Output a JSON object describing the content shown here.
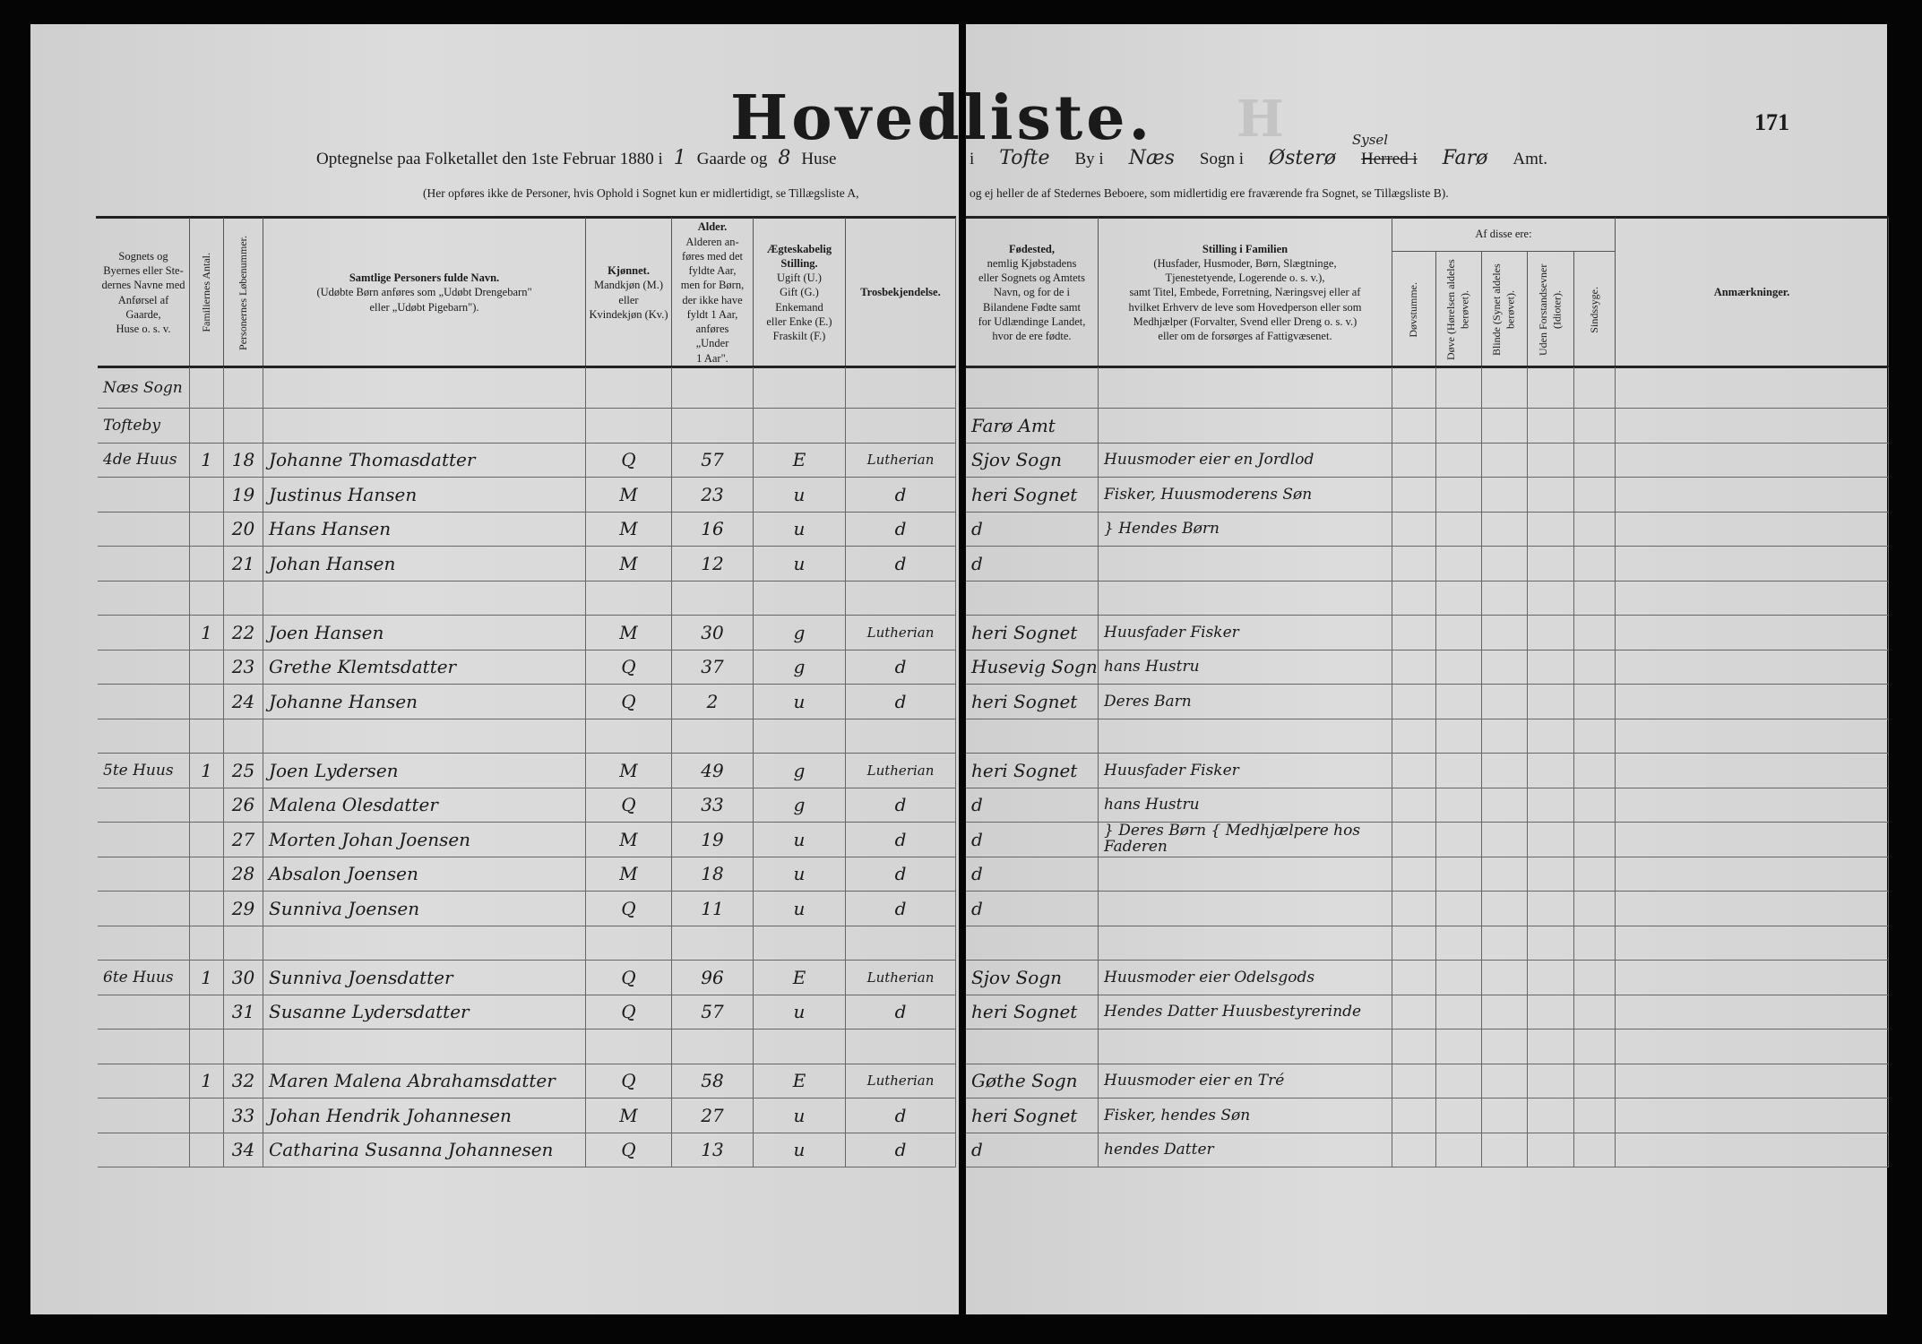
{
  "title": "Hovedliste.",
  "title_ghost": "H",
  "page_number": "171",
  "header_line": {
    "t1": "Optegnelse paa Folketallet den 1ste Februar 1880 i",
    "gaarde_value": "1",
    "t2": "Gaarde og",
    "huse_value": "8",
    "t3": "Huse",
    "t4": "i",
    "by_value": "Tofte",
    "t5": "By i",
    "sogn_value": "Næs",
    "t6": "Sogn i",
    "herred_value": "Østerø",
    "herred_over": "Sysel",
    "t7": "Herred i",
    "amt_value": "Farø",
    "t8": "Amt."
  },
  "note_left": "(Her opføres ikke de Personer, hvis Ophold i Sognet kun er midlertidigt, se Tillægsliste A,",
  "note_right": "og ej heller de af Stedernes Beboere, som midlertidig ere fraværende fra Sognet, se Tillægsliste B).",
  "columns_left": [
    {
      "text": "Sognets og\nByernes eller Ste-\ndernes Navne med\nAnførsel af Gaarde,\nHuse o. s. v."
    },
    {
      "text": "Familiernes Antal.",
      "vertical": true
    },
    {
      "text": "Personernes Løbenummer.",
      "vertical": true
    },
    {
      "bold": "Samtlige Personers fulde Navn.",
      "text": "(Udøbte Børn anføres som „Udøbt Drengebarn\"\neller „Udøbt Pigebarn\")."
    },
    {
      "bold": "Kjønnet.",
      "text": "Mandkjøn (M.)\neller\nKvindekjøn (Kv.)"
    },
    {
      "bold": "Alder.",
      "text": "Alderen an-\nføres med det\nfyldte Aar,\nmen for Børn,\nder ikke have\nfyldt 1 Aar,\nanføres\n„Under\n1 Aar\"."
    },
    {
      "bold": "Ægteskabelig\nStilling.",
      "text": "Ugift (U.)\nGift (G.)\nEnkemand\neller Enke (E.)\nFraskilt (F.)"
    },
    {
      "bold": "Trosbekjendelse."
    }
  ],
  "columns_right": [
    {
      "bold": "Fødested,",
      "text": "nemlig Kjøbstadens\neller Sognets og Amtets\nNavn, og for de i\nBilandene Fødte samt\nfor Udlændinge Landet,\nhvor de ere fødte."
    },
    {
      "bold": "Stilling i Familien",
      "text": "(Husfader, Husmoder, Børn, Slægtninge,\nTjenestetyende, Logerende o. s. v.),\nsamt Titel, Embede, Forretning, Næringsvej eller af\nhvilket Erhverv de leve som Hovedperson eller som\nMedhjælper (Forvalter, Svend eller Dreng o. s. v.)\neller om de forsørges af Fattigvæsenet."
    },
    {
      "text": "Døvstumme.",
      "vertical": true
    },
    {
      "text": "Døve (Hørelsen aldeles berøvet).",
      "vertical": true
    },
    {
      "text": "Blinde (Synet aldeles berøvet).",
      "vertical": true
    },
    {
      "text": "Uden Forstandsevner (Idioter).",
      "vertical": true
    },
    {
      "text": "Sindssyge.",
      "vertical": true
    },
    {
      "bold": "Anmærkninger."
    }
  ],
  "af_disse_ere": "Af disse ere:",
  "rows": [
    {
      "place": "Næs Sogn"
    },
    {
      "place": "Tofteby",
      "birthplace": "Farø Amt"
    },
    {
      "place": "4de Huus",
      "fam": "1",
      "nr": "18",
      "name": "Johanne Thomasdatter",
      "sex": "Q",
      "age": "57",
      "marital": "E",
      "religion": "Lutherian",
      "birthplace": "Sjov Sogn",
      "position": "Huusmoder eier en Jordlod"
    },
    {
      "nr": "19",
      "name": "Justinus Hansen",
      "sex": "M",
      "age": "23",
      "marital": "u",
      "religion": "d",
      "birthplace": "heri Sognet",
      "position": "Fisker, Huusmoderens Søn"
    },
    {
      "nr": "20",
      "name": "Hans Hansen",
      "sex": "M",
      "age": "16",
      "marital": "u",
      "religion": "d",
      "birthplace": "d",
      "position": "} Hendes Børn"
    },
    {
      "nr": "21",
      "name": "Johan Hansen",
      "sex": "M",
      "age": "12",
      "marital": "u",
      "religion": "d",
      "birthplace": "d"
    },
    {},
    {
      "fam": "1",
      "nr": "22",
      "name": "Joen Hansen",
      "sex": "M",
      "age": "30",
      "marital": "g",
      "religion": "Lutherian",
      "birthplace": "heri Sognet",
      "position": "Huusfader Fisker"
    },
    {
      "nr": "23",
      "name": "Grethe Klemtsdatter",
      "sex": "Q",
      "age": "37",
      "marital": "g",
      "religion": "d",
      "birthplace": "Husevig Sogn",
      "position": "hans Hustru"
    },
    {
      "nr": "24",
      "name": "Johanne Hansen",
      "sex": "Q",
      "age": "2",
      "marital": "u",
      "religion": "d",
      "birthplace": "heri Sognet",
      "position": "Deres Barn"
    },
    {},
    {
      "place": "5te Huus",
      "fam": "1",
      "nr": "25",
      "name": "Joen Lydersen",
      "sex": "M",
      "age": "49",
      "marital": "g",
      "religion": "Lutherian",
      "birthplace": "heri Sognet",
      "position": "Huusfader Fisker"
    },
    {
      "nr": "26",
      "name": "Malena Olesdatter",
      "sex": "Q",
      "age": "33",
      "marital": "g",
      "religion": "d",
      "birthplace": "d",
      "position": "hans Hustru"
    },
    {
      "nr": "27",
      "name": "Morten Johan Joensen",
      "sex": "M",
      "age": "19",
      "marital": "u",
      "religion": "d",
      "birthplace": "d",
      "position": "} Deres Børn { Medhjælpere hos Faderen"
    },
    {
      "nr": "28",
      "name": "Absalon Joensen",
      "sex": "M",
      "age": "18",
      "marital": "u",
      "religion": "d",
      "birthplace": "d"
    },
    {
      "nr": "29",
      "name": "Sunniva Joensen",
      "sex": "Q",
      "age": "11",
      "marital": "u",
      "religion": "d",
      "birthplace": "d"
    },
    {},
    {
      "place": "6te Huus",
      "fam": "1",
      "nr": "30",
      "name": "Sunniva Joensdatter",
      "sex": "Q",
      "age": "96",
      "marital": "E",
      "religion": "Lutherian",
      "birthplace": "Sjov Sogn",
      "position": "Huusmoder eier Odelsgods"
    },
    {
      "nr": "31",
      "name": "Susanne Lydersdatter",
      "sex": "Q",
      "age": "57",
      "marital": "u",
      "religion": "d",
      "birthplace": "heri Sognet",
      "position": "Hendes Datter Huusbestyrerinde"
    },
    {},
    {
      "fam": "1",
      "nr": "32",
      "name": "Maren Malena Abrahamsdatter",
      "sex": "Q",
      "age": "58",
      "marital": "E",
      "religion": "Lutherian",
      "birthplace": "Gøthe Sogn",
      "position": "Huusmoder eier en Tré"
    },
    {
      "nr": "33",
      "name": "Johan Hendrik Johannesen",
      "sex": "M",
      "age": "27",
      "marital": "u",
      "religion": "d",
      "birthplace": "heri Sognet",
      "position": "Fisker, hendes Søn"
    },
    {
      "nr": "34",
      "name": "Catharina Susanna Johannesen",
      "sex": "Q",
      "age": "13",
      "marital": "u",
      "religion": "d",
      "birthplace": "d",
      "position": "hendes Datter"
    }
  ]
}
